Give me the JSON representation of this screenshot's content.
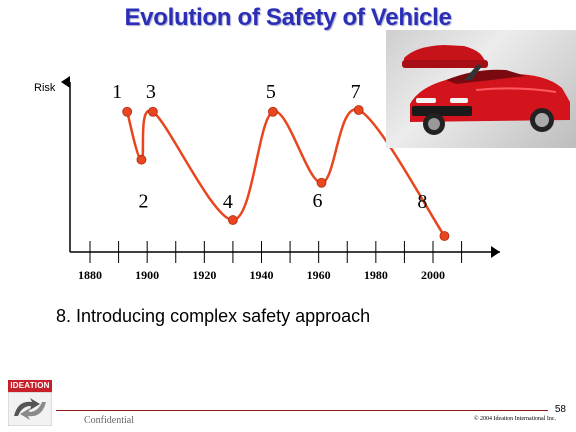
{
  "slide": {
    "title": "Evolution of Safety of Vehicle",
    "caption": "8. Introducing complex safety approach",
    "footer": {
      "logo_text": "IDEATION",
      "confidential": "Confidential",
      "copyright": "© 2004 Ideation International Inc.",
      "page_number": "58"
    }
  },
  "chart_data": {
    "type": "line",
    "ylabel": "Risk",
    "xlabel": "",
    "x_ticks": [
      "1880",
      "1900",
      "1920",
      "1940",
      "1960",
      "1980",
      "2000"
    ],
    "xlim": [
      1868,
      2020
    ],
    "ylim": [
      0,
      10
    ],
    "line_color": "#e8461e",
    "marker_color": "#e8461e",
    "series": [
      {
        "points": [
          {
            "label": "1",
            "year": 1893,
            "risk": 8.3
          },
          {
            "label": "2",
            "year": 1898,
            "risk": 5.6
          },
          {
            "label": "3",
            "year": 1902,
            "risk": 8.3
          },
          {
            "label": "4",
            "year": 1930,
            "risk": 2.2
          },
          {
            "label": "5",
            "year": 1944,
            "risk": 8.3
          },
          {
            "label": "6",
            "year": 1961,
            "risk": 4.3
          },
          {
            "label": "7",
            "year": 1974,
            "risk": 8.4
          },
          {
            "label": "8",
            "year": 2004,
            "risk": 1.3
          }
        ]
      }
    ]
  },
  "image": {
    "subject": "red-convertible-cars"
  }
}
